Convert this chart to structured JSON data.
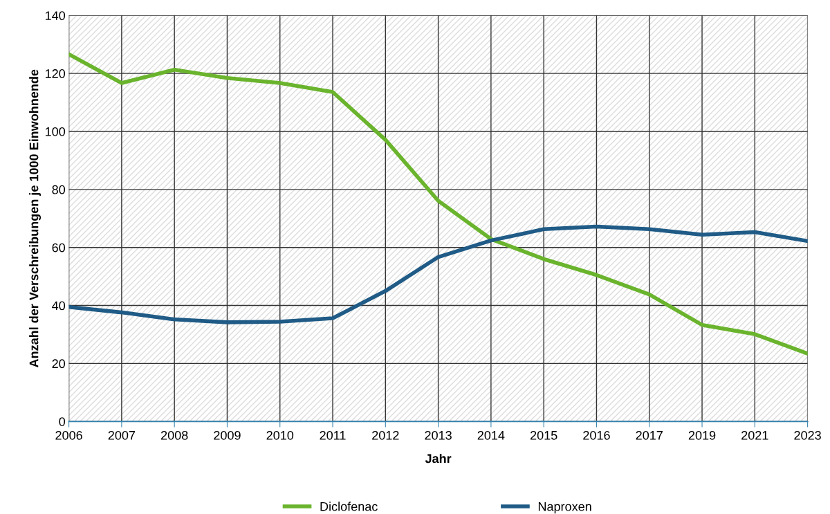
{
  "chart_data": {
    "type": "line",
    "xlabel": "Jahr",
    "ylabel": "Anzahl der Verschreibungen je 1000 Einwohnende",
    "categories": [
      "2006",
      "2007",
      "2008",
      "2009",
      "2010",
      "2011",
      "2012",
      "2013",
      "2014",
      "2015",
      "2016",
      "2017",
      "2019",
      "2021",
      "2023"
    ],
    "series": [
      {
        "name": "Diclofenac",
        "color": "#6ab42d",
        "values": [
          126.6,
          116.7,
          121.3,
          118.4,
          116.7,
          113.6,
          97.1,
          76.1,
          62.9,
          56,
          50.5,
          43.8,
          33.3,
          30.1,
          23.4
        ]
      },
      {
        "name": "Naproxen",
        "color": "#1f5b86",
        "values": [
          39.5,
          37.6,
          35.2,
          34.2,
          34.4,
          35.6,
          45,
          56.7,
          62.4,
          66.3,
          67.2,
          66.3,
          64.4,
          65.3,
          62.2
        ]
      }
    ],
    "ylim": [
      0,
      140
    ],
    "yticks": [
      0,
      20,
      40,
      60,
      80,
      100,
      120,
      140
    ],
    "grid": true,
    "legend": "bottom",
    "marker": "none",
    "line_style": "solid"
  }
}
